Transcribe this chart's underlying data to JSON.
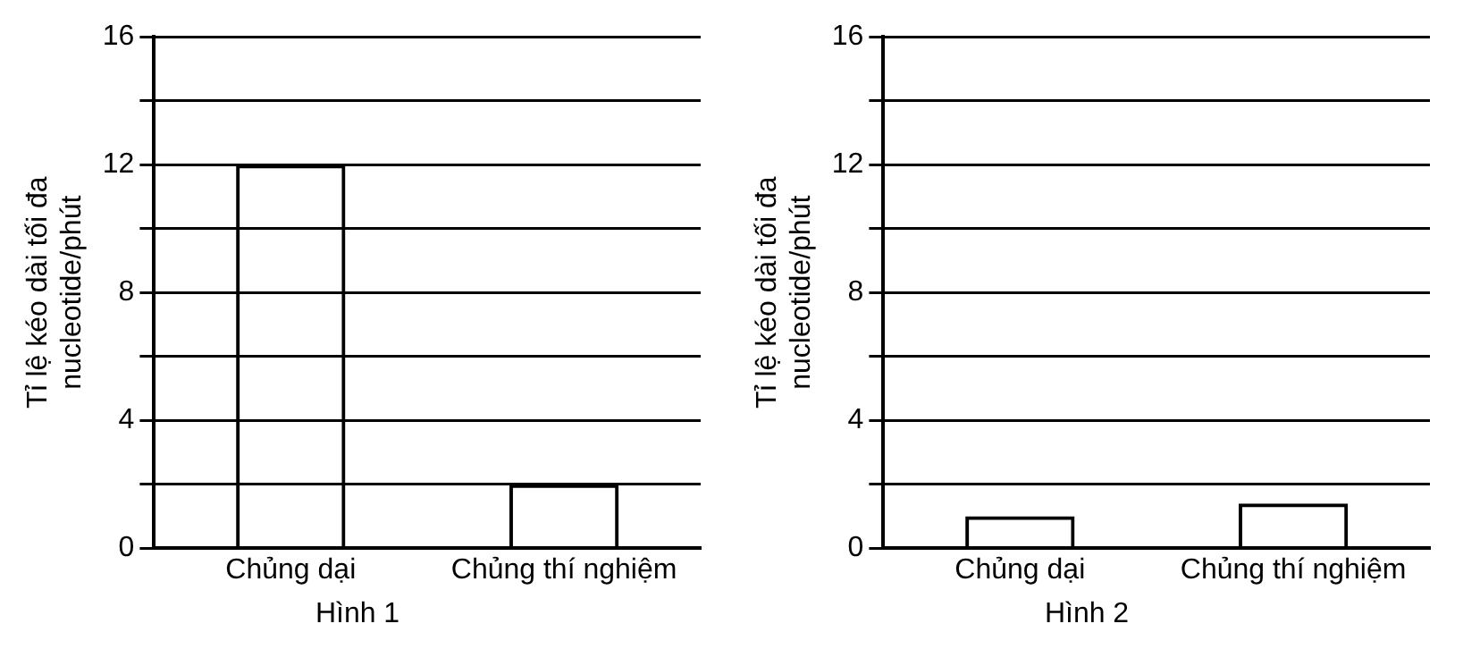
{
  "chart_data": [
    {
      "type": "bar",
      "title": "Hình 1",
      "ylabel": "Tỉ lệ kéo dài tối đa\nnucleotide/phút",
      "categories": [
        "Chủng dại",
        "Chủng thí nghiệm"
      ],
      "values": [
        12,
        2
      ],
      "color": "#000000",
      "ylim": [
        0,
        16
      ],
      "yticks": [
        0,
        {
          "value": 2,
          "label": null
        },
        4,
        {
          "value": 6,
          "label": null
        },
        8,
        {
          "value": 10,
          "label": null
        },
        12,
        {
          "value": 14,
          "label": null
        },
        16
      ],
      "grid": "y",
      "legend": false
    },
    {
      "type": "bar",
      "title": "Hình 2",
      "ylabel": "Tỉ lệ kéo dài tối đa\nnucleotide/phút",
      "categories": [
        "Chủng dại",
        "Chủng thí nghiệm"
      ],
      "values": [
        1,
        1.4
      ],
      "color": "#000000",
      "ylim": [
        0,
        16
      ],
      "yticks": [
        0,
        {
          "value": 2,
          "label": null
        },
        4,
        {
          "value": 6,
          "label": null
        },
        8,
        {
          "value": 10,
          "label": null
        },
        12,
        {
          "value": 14,
          "label": null
        },
        16
      ],
      "grid": "y",
      "legend": false
    }
  ]
}
